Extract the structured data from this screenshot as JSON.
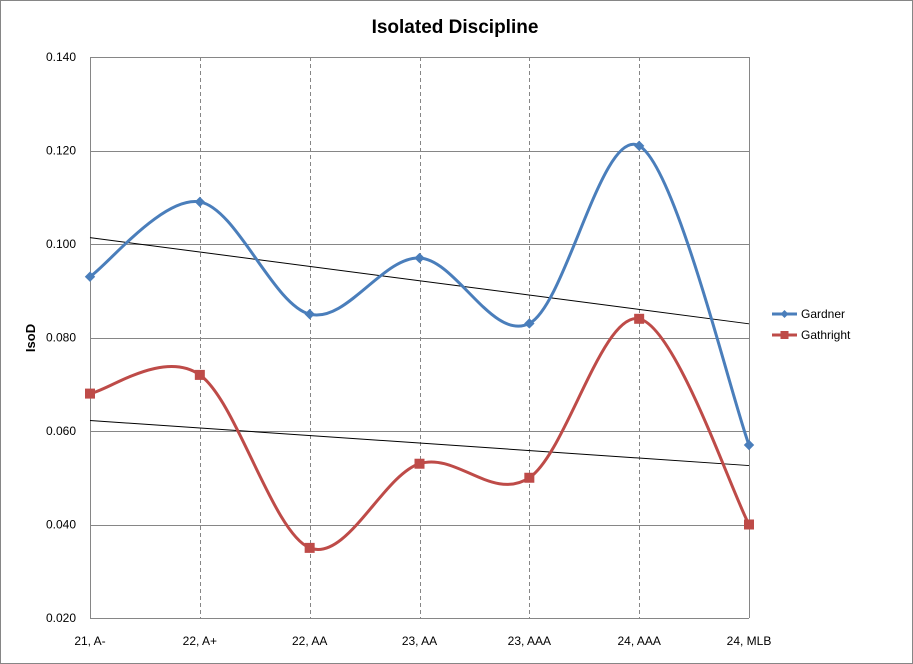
{
  "chart_data": {
    "type": "line",
    "title": "Isolated Discipline",
    "xlabel": "",
    "ylabel": "IsoD",
    "categories": [
      "21, A-",
      "22, A+",
      "22, AA",
      "23, AA",
      "23, AAA",
      "24, AAA",
      "24, MLB"
    ],
    "ylim": [
      0.02,
      0.14
    ],
    "yticks": [
      "0.020",
      "0.040",
      "0.060",
      "0.080",
      "0.100",
      "0.120",
      "0.140"
    ],
    "grid": "horizontal solid, vertical dashed",
    "legend_position": "right",
    "smoothed": true,
    "series": [
      {
        "name": "Gardner",
        "values": [
          0.093,
          0.109,
          0.085,
          0.097,
          0.083,
          0.121,
          0.057
        ],
        "color": "#4a7ebb",
        "marker": "diamond",
        "trendline": "linear"
      },
      {
        "name": "Gathright",
        "values": [
          0.068,
          0.072,
          0.035,
          0.053,
          0.05,
          0.084,
          0.04
        ],
        "color": "#be4b48",
        "marker": "square",
        "trendline": "linear"
      }
    ]
  }
}
